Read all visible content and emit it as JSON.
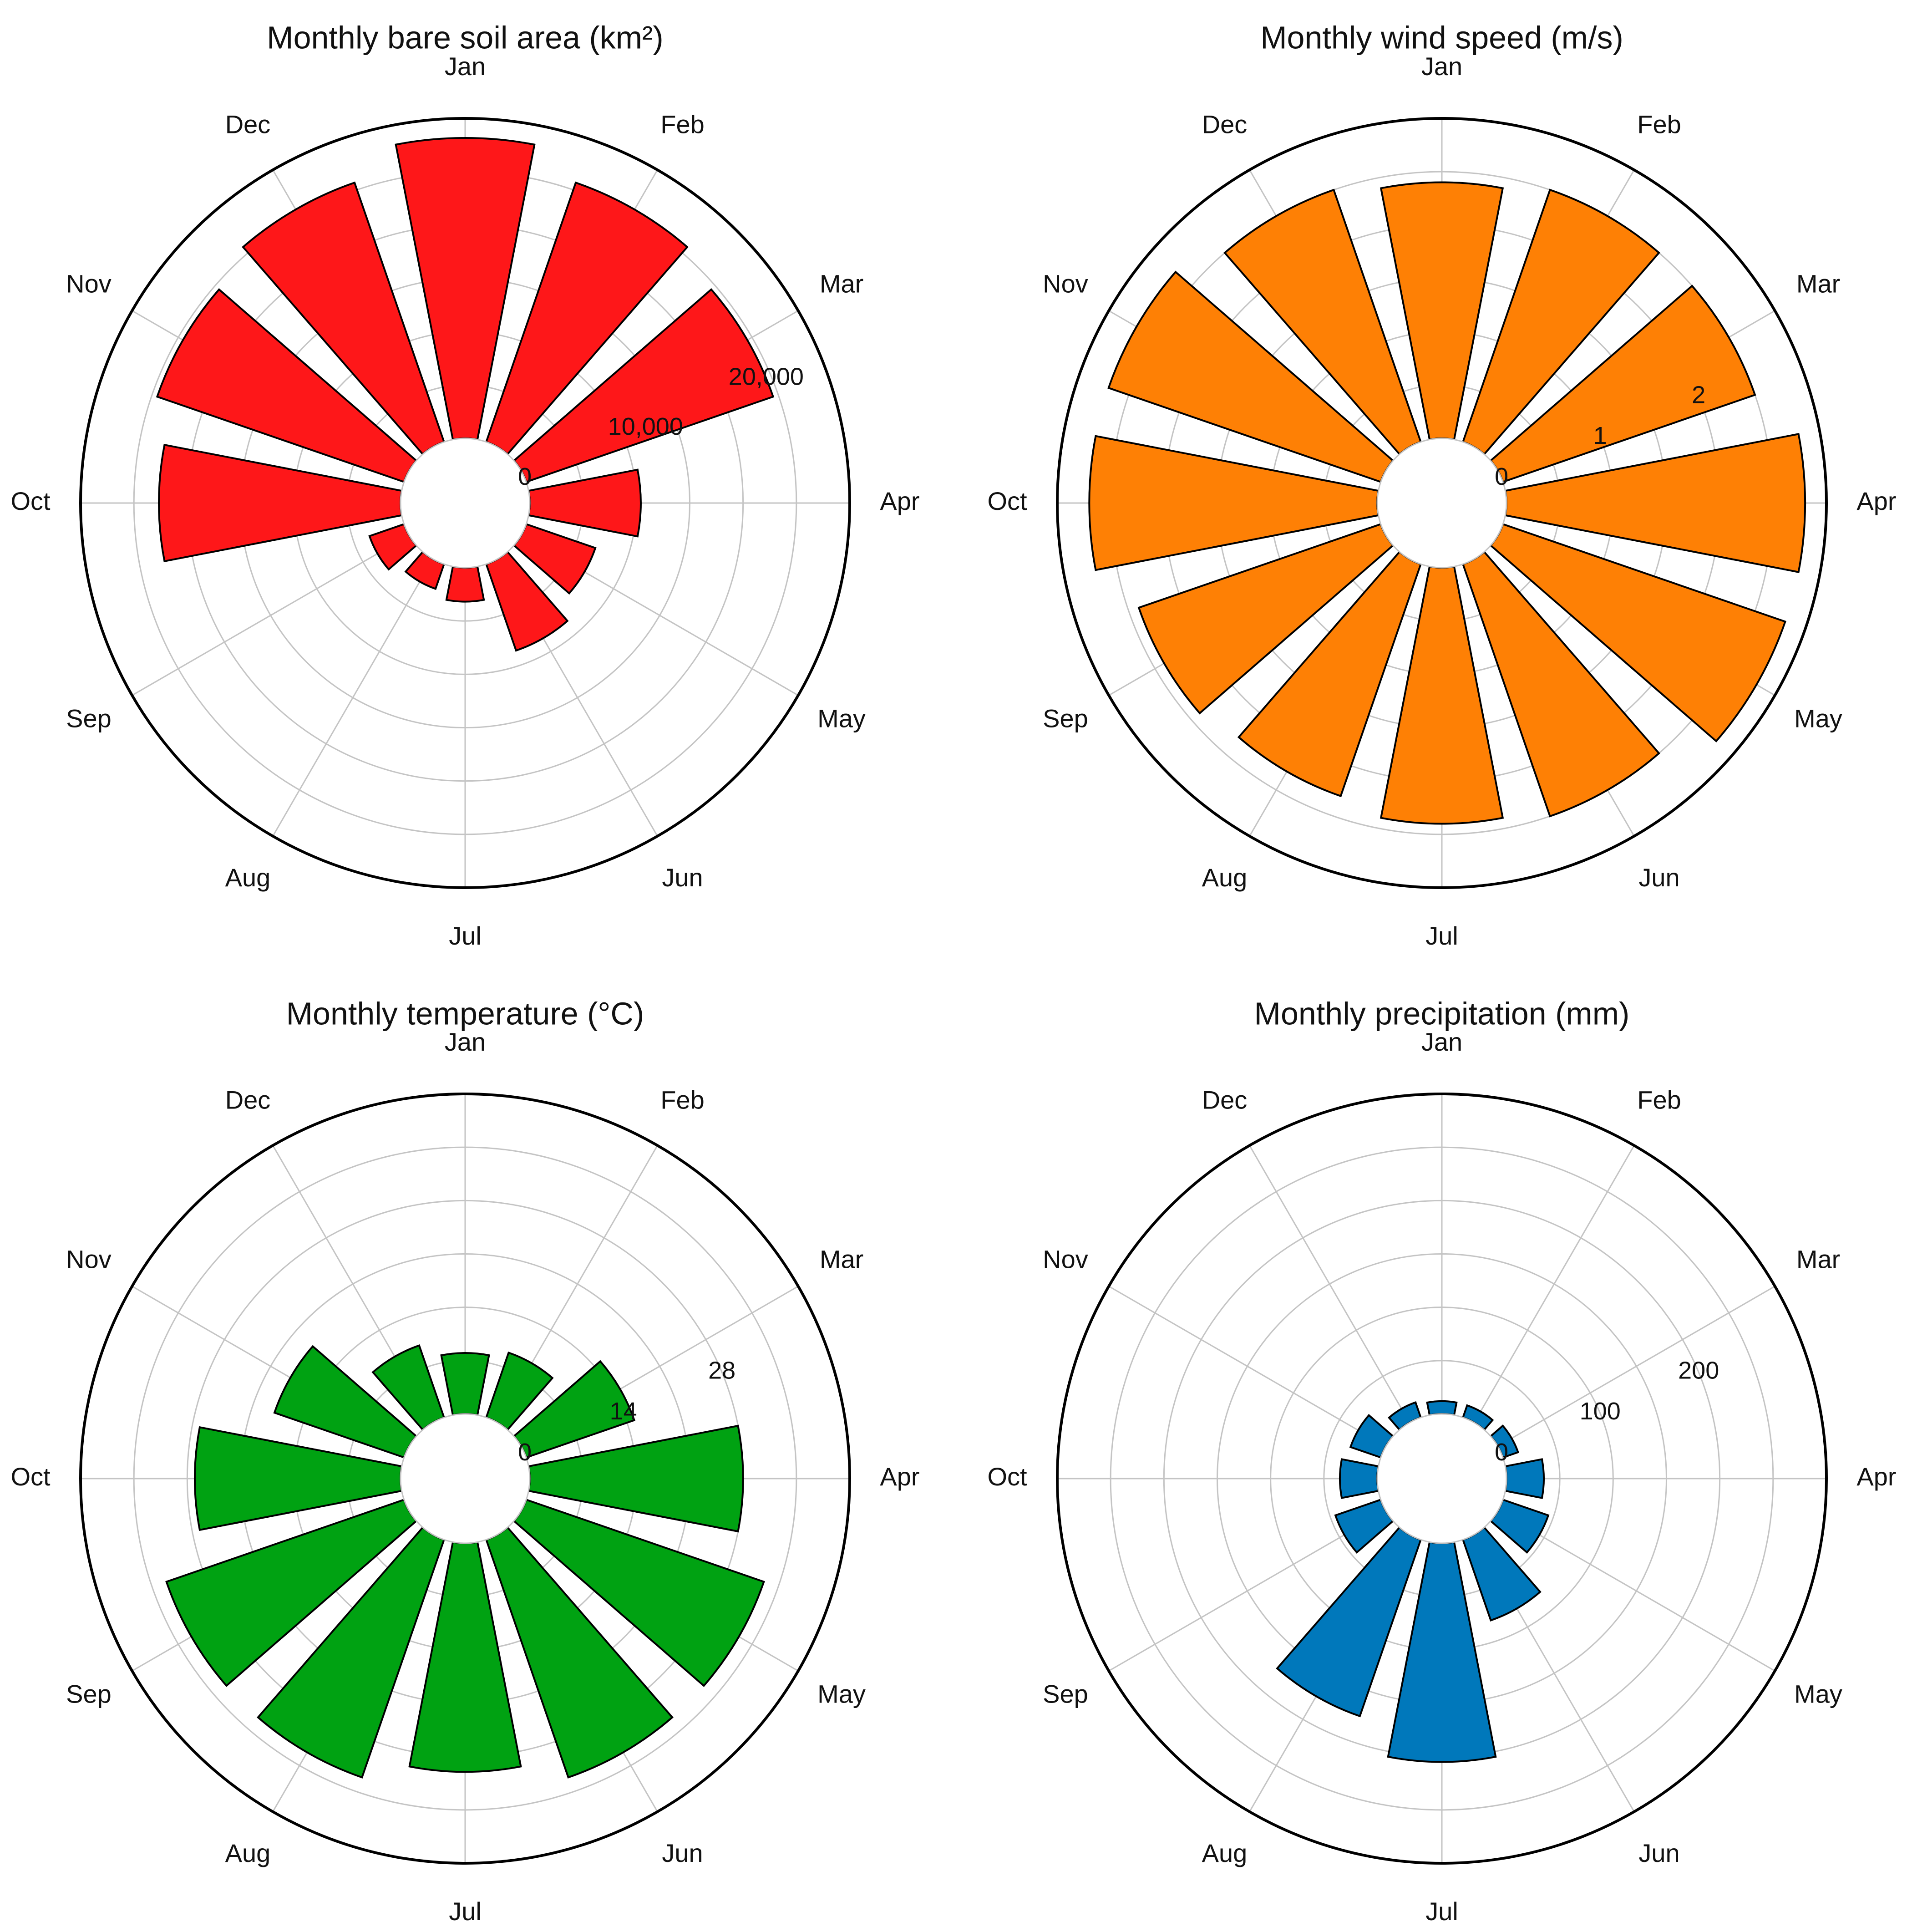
{
  "chart_data": [
    {
      "type": "bar",
      "subtype": "polar",
      "title": "Monthly bare soil area (km²)",
      "categories": [
        "Jan",
        "Feb",
        "Mar",
        "Apr",
        "May",
        "Jun",
        "Jul",
        "Aug",
        "Sep",
        "Oct",
        "Nov",
        "Dec"
      ],
      "values": [
        23000,
        21000,
        20000,
        8500,
        5600,
        7000,
        2600,
        2000,
        2800,
        18500,
        20000,
        21000
      ],
      "rlim": [
        0,
        24500
      ],
      "rticks": [
        0,
        10000,
        20000
      ],
      "rtick_labels": [
        "0",
        "10,000",
        "20,000"
      ],
      "color": "#fe1719",
      "grid": true
    },
    {
      "type": "bar",
      "subtype": "polar",
      "title": "Monthly wind speed (m/s)",
      "categories": [
        "Jan",
        "Feb",
        "Mar",
        "Apr",
        "May",
        "Jun",
        "Jul",
        "Aug",
        "Sep",
        "Oct",
        "Nov",
        "Dec"
      ],
      "values": [
        2.4,
        2.5,
        2.5,
        2.8,
        2.8,
        2.5,
        2.4,
        2.3,
        2.4,
        2.7,
        2.7,
        2.5
      ],
      "rlim": [
        0,
        3.0
      ],
      "rticks": [
        0,
        1,
        2
      ],
      "rtick_labels": [
        "0",
        "1",
        "2"
      ],
      "color": "#fe8005",
      "grid": true
    },
    {
      "type": "bar",
      "subtype": "polar",
      "title": "Monthly temperature (°C)",
      "categories": [
        "Jan",
        "Feb",
        "Mar",
        "Apr",
        "May",
        "Jun",
        "Jul",
        "Aug",
        "Sep",
        "Oct",
        "Nov",
        "Dec"
      ],
      "values": [
        8,
        9,
        15,
        28,
        33,
        33,
        30,
        33,
        33,
        27,
        18,
        10
      ],
      "rlim": [
        0,
        42
      ],
      "rticks": [
        0,
        14,
        28
      ],
      "rtick_labels": [
        "0",
        "14",
        "28"
      ],
      "color": "#00a212",
      "grid": true
    },
    {
      "type": "bar",
      "subtype": "polar",
      "title": "Monthly precipitation (mm)",
      "categories": [
        "Jan",
        "Feb",
        "Mar",
        "Apr",
        "May",
        "Jun",
        "Jul",
        "Aug",
        "Sep",
        "Oct",
        "Nov",
        "Dec"
      ],
      "values": [
        12,
        12,
        15,
        35,
        45,
        80,
        205,
        175,
        45,
        35,
        30,
        15
      ],
      "rlim": [
        0,
        300
      ],
      "rticks": [
        0,
        100,
        200
      ],
      "rtick_labels": [
        "0",
        "100",
        "200"
      ],
      "color": "#0078bb",
      "grid": true
    }
  ]
}
